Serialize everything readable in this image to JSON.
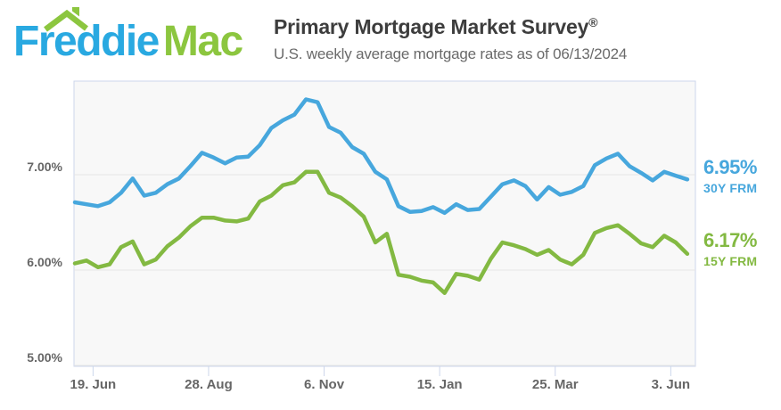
{
  "header": {
    "logo": {
      "word1": "Freddie",
      "word2": "Mac",
      "blue": "#29A9E1",
      "green": "#8CC63F"
    },
    "title": "Primary Mortgage Market Survey",
    "title_reg": "®",
    "subtitle": "U.S. weekly average mortgage rates as of 06/13/2024"
  },
  "colors": {
    "plot_background": "#f8f8f8",
    "plot_border": "#ccd6eb",
    "gridline": "#e6e6e6",
    "axis_label": "#666666",
    "title_text": "#3d3d3d",
    "subtitle_text": "#6a6a6a"
  },
  "chart_data": {
    "type": "line",
    "title": "Primary Mortgage Market Survey",
    "subtitle": "U.S. weekly average mortgage rates as of 06/13/2024",
    "frequency": "weekly",
    "x_start_date": "2023-06-08",
    "x_end_date": "2024-06-13",
    "grid": true,
    "legend_position": "right",
    "ylim": [
      5.0,
      7.98
    ],
    "yticks": [
      {
        "label": "7.00%",
        "value": 7.0
      },
      {
        "label": "6.00%",
        "value": 6.0
      },
      {
        "label": "5.00%",
        "value": 5.0
      }
    ],
    "xticks": [
      {
        "label": "19. Jun",
        "week": 1.571
      },
      {
        "label": "28. Aug",
        "week": 11.571
      },
      {
        "label": "6. Nov",
        "week": 21.571
      },
      {
        "label": "15. Jan",
        "week": 31.571
      },
      {
        "label": "25. Mar",
        "week": 41.571
      },
      {
        "label": "3. Jun",
        "week": 51.571
      }
    ],
    "series": [
      {
        "name": "30Y FRM",
        "latest_label": "6.95%",
        "latest_value": 6.95,
        "color": "#47A7DD",
        "values": [
          6.71,
          6.69,
          6.67,
          6.71,
          6.81,
          6.96,
          6.78,
          6.81,
          6.9,
          6.96,
          7.09,
          7.23,
          7.18,
          7.12,
          7.18,
          7.19,
          7.31,
          7.49,
          7.57,
          7.63,
          7.79,
          7.76,
          7.5,
          7.44,
          7.29,
          7.22,
          7.03,
          6.95,
          6.67,
          6.61,
          6.62,
          6.66,
          6.6,
          6.69,
          6.63,
          6.64,
          6.77,
          6.9,
          6.94,
          6.88,
          6.74,
          6.87,
          6.79,
          6.82,
          6.88,
          7.1,
          7.17,
          7.22,
          7.09,
          7.02,
          6.94,
          7.03,
          6.99,
          6.95
        ]
      },
      {
        "name": "15Y FRM",
        "latest_label": "6.17%",
        "latest_value": 6.17,
        "color": "#83B942",
        "values": [
          6.07,
          6.1,
          6.03,
          6.06,
          6.24,
          6.3,
          6.06,
          6.11,
          6.25,
          6.34,
          6.46,
          6.55,
          6.55,
          6.52,
          6.51,
          6.54,
          6.72,
          6.78,
          6.89,
          6.92,
          7.03,
          7.03,
          6.81,
          6.76,
          6.67,
          6.56,
          6.29,
          6.38,
          5.95,
          5.93,
          5.89,
          5.87,
          5.76,
          5.96,
          5.94,
          5.9,
          6.12,
          6.29,
          6.26,
          6.22,
          6.16,
          6.21,
          6.11,
          6.06,
          6.16,
          6.39,
          6.44,
          6.47,
          6.38,
          6.28,
          6.24,
          6.36,
          6.29,
          6.17
        ]
      }
    ]
  }
}
